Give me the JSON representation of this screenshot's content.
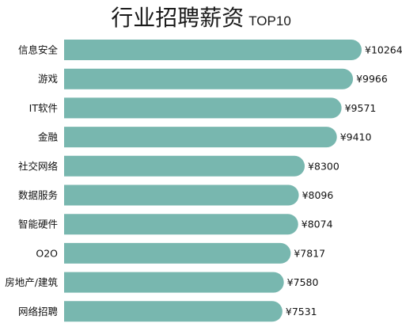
{
  "title": {
    "main": "行业招聘薪资",
    "suffix": "TOP10"
  },
  "colors": {
    "bar": "#78b7af",
    "background": "#ffffff",
    "text": "#111111"
  },
  "chart_data": {
    "type": "bar",
    "orientation": "horizontal",
    "title": "行业招聘薪资 TOP10",
    "categories": [
      "信息安全",
      "游戏",
      "IT软件",
      "金融",
      "社交网络",
      "数据服务",
      "智能硬件",
      "O2O",
      "房地产/建筑",
      "网络招聘"
    ],
    "values": [
      10264,
      9966,
      9571,
      9410,
      8300,
      8096,
      8074,
      7817,
      7580,
      7531
    ],
    "data_labels": [
      "¥10264",
      "¥9966",
      "¥9571",
      "¥9410",
      "¥8300",
      "¥8096",
      "¥8074",
      "¥7817",
      "¥7580",
      "¥7531"
    ],
    "xlim": [
      0,
      10264
    ],
    "grid": false,
    "legend": "none"
  }
}
